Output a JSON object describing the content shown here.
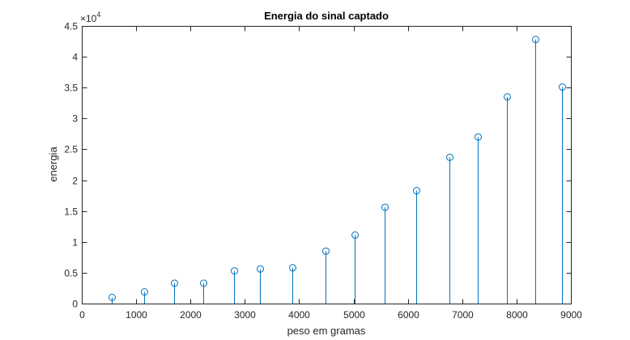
{
  "chart_data": {
    "type": "stem",
    "title": "Energia do sinal captado",
    "xlabel": "peso em gramas",
    "ylabel": "energia",
    "xlim": [
      0,
      9000
    ],
    "ylim": [
      0,
      45000
    ],
    "x_ticks": [
      "0",
      "1000",
      "2000",
      "3000",
      "4000",
      "5000",
      "6000",
      "7000",
      "8000",
      "9000"
    ],
    "y_ticks": [
      "0",
      "0.5",
      "1",
      "1.5",
      "2",
      "2.5",
      "3",
      "3.5",
      "4",
      "4.5"
    ],
    "y_exponent_base": "×10",
    "y_exponent_power": "4",
    "grid": false,
    "marker": "circle",
    "color": "#0072BD",
    "x": [
      550,
      1150,
      1700,
      2230,
      2800,
      3280,
      3880,
      4480,
      5020,
      5580,
      6160,
      6760,
      7290,
      7820,
      8350,
      8830
    ],
    "values": [
      1000,
      1900,
      3300,
      3300,
      5300,
      5600,
      5800,
      8500,
      11100,
      15600,
      18300,
      23700,
      27000,
      33500,
      42800,
      35100
    ]
  }
}
